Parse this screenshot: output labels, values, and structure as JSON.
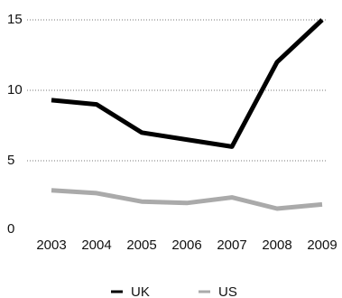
{
  "chart_data": {
    "type": "line",
    "title": "",
    "xlabel": "",
    "ylabel": "",
    "x": [
      "2003",
      "2004",
      "2005",
      "2006",
      "2007",
      "2008",
      "2009"
    ],
    "ylim": [
      0,
      15
    ],
    "yticks": [
      "0",
      "5",
      "10",
      "15"
    ],
    "grid": "horizontal dotted at 5, 10, 15",
    "legend_position": "bottom-center",
    "series": [
      {
        "name": "UK",
        "color": "#000000",
        "values": [
          9.3,
          9.0,
          7.0,
          6.5,
          6.0,
          12.0,
          15.0
        ]
      },
      {
        "name": "US",
        "color": "#aaaaaa",
        "values": [
          2.9,
          2.7,
          2.1,
          2.0,
          2.4,
          1.6,
          1.9
        ]
      }
    ]
  }
}
